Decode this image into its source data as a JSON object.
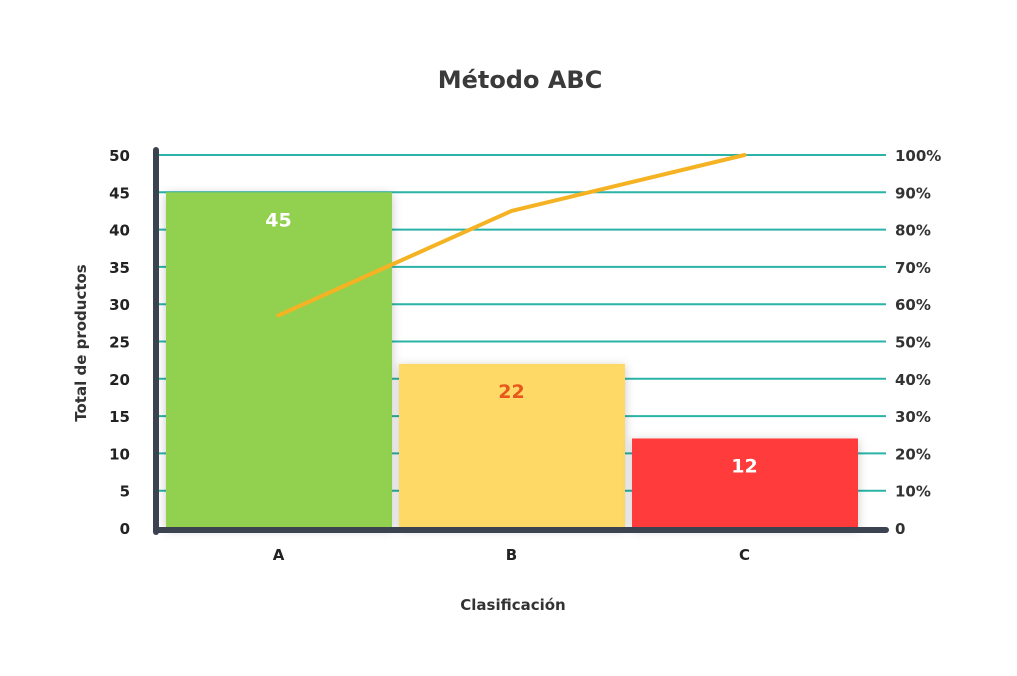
{
  "chart_data": {
    "type": "bar",
    "title": "Método ABC",
    "xlabel": "Clasificación",
    "ylabel": "Total de productos",
    "categories": [
      "A",
      "B",
      "C"
    ],
    "values": [
      45,
      22,
      12
    ],
    "data_labels": [
      "45",
      "22",
      "12"
    ],
    "bar_colors": [
      "#92d050",
      "#ffd966",
      "#ff3b3b"
    ],
    "label_colors": [
      "#ffffff",
      "#e8581c",
      "#ffffff"
    ],
    "ylim": [
      0,
      50
    ],
    "yticks": [
      "0",
      "5",
      "10",
      "15",
      "20",
      "25",
      "30",
      "35",
      "40",
      "45",
      "50"
    ],
    "y2ticks": [
      "0",
      "10%",
      "20%",
      "30%",
      "40%",
      "50%",
      "60%",
      "70%",
      "80%",
      "90%",
      "100%"
    ],
    "y2lim": [
      0,
      100
    ],
    "line": {
      "color": "#f5b324",
      "values": [
        57,
        85,
        100
      ]
    },
    "grid": true,
    "grid_color": "#2ab3a6",
    "axis_color": "#3b4350"
  }
}
